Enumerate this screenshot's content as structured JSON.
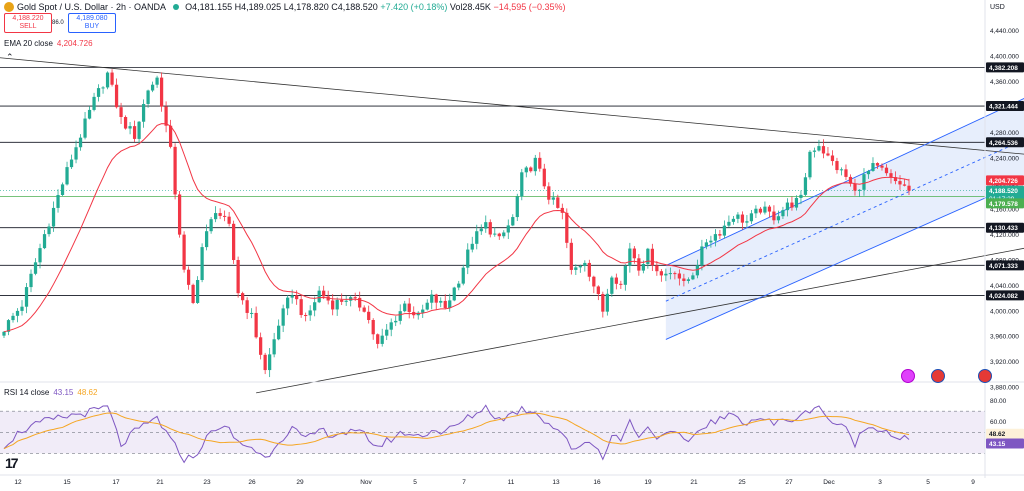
{
  "header": {
    "symbol": "Gold Spot / U.S. Dollar · 2h · OANDA",
    "open": "O4,181.155",
    "high": "H4,189.025",
    "low": "L4,178.820",
    "close": "C4,188.520",
    "change": "+7.420 (+0.18%)",
    "volume": "Vol28.45K",
    "vol_change": "−14,595 (−0.35%)",
    "sell_price": "4,188.220",
    "sell_label": "SELL",
    "spread": "86.0",
    "buy_price": "4,189.080",
    "buy_label": "BUY"
  },
  "ema_label": "EMA 20 close",
  "ema_value": "4,204.726",
  "rsi_label": "RSI 14 close",
  "rsi_value": "43.15",
  "rsi_ma_value": "48.62",
  "currency": "USD",
  "logo_text": "17",
  "icons": {
    "symbol_icon": "gold-coin-icon",
    "market_status": "market-open-dot-icon",
    "collapse": "chevron-up-icon",
    "events": [
      "economic-event-icon",
      "us-flag-icon",
      "us-flag-icon"
    ]
  },
  "colors": {
    "up": "#22ab94",
    "down": "#f23645",
    "ema": "#f23645",
    "channel": "#2962ff",
    "channel_fill": "#e3ebfb",
    "rsi": "#7e57c2",
    "rsi_ma": "#f5a623",
    "rsi_band": "#ede7f6",
    "level_line": "#131722"
  },
  "chart_data": {
    "type": "candlestick",
    "title": "Gold Spot / U.S. Dollar · 2h · OANDA",
    "x_ticks": [
      "12",
      "15",
      "17",
      "21",
      "23",
      "26",
      "29",
      "Nov",
      "5",
      "7",
      "11",
      "13",
      "16",
      "19",
      "21",
      "25",
      "27",
      "Dec",
      "3",
      "5",
      "9"
    ],
    "price_ylim": [
      3863,
      4466
    ],
    "price_ticks": [
      "4,440.000",
      "4,400.000",
      "4,360.000",
      "4,320.000",
      "4,280.000",
      "4,240.000",
      "4,200.000",
      "4,160.000",
      "4,120.000",
      "4,080.000",
      "4,040.000",
      "4,000.000",
      "3,960.000",
      "3,920.000",
      "3,880.000"
    ],
    "horizontal_levels": [
      "4,382.208",
      "4,321.444",
      "4,264.536",
      "4,130.433",
      "4,071.333",
      "4,024.082"
    ],
    "price_labels": {
      "ema": "4,204.726",
      "last": "4,188.520",
      "countdown": "01:17:29",
      "green_line": "4,179.578"
    },
    "anchors": [
      {
        "t": 0,
        "p": 3972
      },
      {
        "t": 4,
        "p": 4010
      },
      {
        "t": 9,
        "p": 4120
      },
      {
        "t": 15,
        "p": 4240
      },
      {
        "t": 20,
        "p": 4330
      },
      {
        "t": 23,
        "p": 4372
      },
      {
        "t": 26,
        "p": 4300
      },
      {
        "t": 29,
        "p": 4275
      },
      {
        "t": 32,
        "p": 4348
      },
      {
        "t": 34,
        "p": 4365
      },
      {
        "t": 37,
        "p": 4250
      },
      {
        "t": 40,
        "p": 4060
      },
      {
        "t": 42,
        "p": 4010
      },
      {
        "t": 44,
        "p": 4100
      },
      {
        "t": 47,
        "p": 4160
      },
      {
        "t": 50,
        "p": 4130
      },
      {
        "t": 52,
        "p": 4030
      },
      {
        "t": 55,
        "p": 3990
      },
      {
        "t": 58,
        "p": 3905
      },
      {
        "t": 61,
        "p": 3980
      },
      {
        "t": 64,
        "p": 4030
      },
      {
        "t": 67,
        "p": 3985
      },
      {
        "t": 70,
        "p": 4030
      },
      {
        "t": 73,
        "p": 4010
      },
      {
        "t": 76,
        "p": 4020
      },
      {
        "t": 80,
        "p": 4005
      },
      {
        "t": 83,
        "p": 3945
      },
      {
        "t": 86,
        "p": 3980
      },
      {
        "t": 89,
        "p": 4010
      },
      {
        "t": 92,
        "p": 3990
      },
      {
        "t": 95,
        "p": 4020
      },
      {
        "t": 98,
        "p": 4005
      },
      {
        "t": 101,
        "p": 4050
      },
      {
        "t": 104,
        "p": 4110
      },
      {
        "t": 107,
        "p": 4135
      },
      {
        "t": 110,
        "p": 4110
      },
      {
        "t": 113,
        "p": 4145
      },
      {
        "t": 115,
        "p": 4210
      },
      {
        "t": 118,
        "p": 4235
      },
      {
        "t": 121,
        "p": 4180
      },
      {
        "t": 124,
        "p": 4150
      },
      {
        "t": 126,
        "p": 4060
      },
      {
        "t": 129,
        "p": 4080
      },
      {
        "t": 131,
        "p": 4040
      },
      {
        "t": 133,
        "p": 4000
      },
      {
        "t": 135,
        "p": 4060
      },
      {
        "t": 137,
        "p": 4040
      },
      {
        "t": 139,
        "p": 4100
      },
      {
        "t": 141,
        "p": 4070
      },
      {
        "t": 143,
        "p": 4090
      },
      {
        "t": 146,
        "p": 4055
      },
      {
        "t": 149,
        "p": 4065
      },
      {
        "t": 151,
        "p": 4040
      },
      {
        "t": 153,
        "p": 4060
      },
      {
        "t": 156,
        "p": 4110
      },
      {
        "t": 159,
        "p": 4125
      },
      {
        "t": 162,
        "p": 4150
      },
      {
        "t": 165,
        "p": 4140
      },
      {
        "t": 168,
        "p": 4160
      },
      {
        "t": 171,
        "p": 4148
      },
      {
        "t": 174,
        "p": 4165
      },
      {
        "t": 177,
        "p": 4175
      },
      {
        "t": 179,
        "p": 4250
      },
      {
        "t": 181,
        "p": 4262
      },
      {
        "t": 183,
        "p": 4240
      },
      {
        "t": 185,
        "p": 4225
      },
      {
        "t": 187,
        "p": 4210
      },
      {
        "t": 189,
        "p": 4185
      },
      {
        "t": 191,
        "p": 4210
      },
      {
        "t": 193,
        "p": 4225
      },
      {
        "t": 195,
        "p": 4220
      },
      {
        "t": 197,
        "p": 4205
      },
      {
        "t": 199,
        "p": 4200
      },
      {
        "t": 201,
        "p": 4188.5
      }
    ],
    "rsi_ylim": [
      18,
      92
    ],
    "rsi_ticks": [
      "80.00",
      "60.00",
      "40.00"
    ],
    "rsi_band": [
      30,
      70
    ],
    "rsi_mid": 50,
    "rsi_anchors": [
      {
        "t": 0,
        "r": 38
      },
      {
        "t": 4,
        "r": 52
      },
      {
        "t": 9,
        "r": 60
      },
      {
        "t": 15,
        "r": 66
      },
      {
        "t": 20,
        "r": 70
      },
      {
        "t": 23,
        "r": 74
      },
      {
        "t": 26,
        "r": 38
      },
      {
        "t": 29,
        "r": 50
      },
      {
        "t": 32,
        "r": 58
      },
      {
        "t": 34,
        "r": 64
      },
      {
        "t": 37,
        "r": 42
      },
      {
        "t": 40,
        "r": 25
      },
      {
        "t": 42,
        "r": 26
      },
      {
        "t": 44,
        "r": 38
      },
      {
        "t": 47,
        "r": 55
      },
      {
        "t": 50,
        "r": 52
      },
      {
        "t": 52,
        "r": 40
      },
      {
        "t": 55,
        "r": 36
      },
      {
        "t": 58,
        "r": 25
      },
      {
        "t": 61,
        "r": 42
      },
      {
        "t": 64,
        "r": 54
      },
      {
        "t": 67,
        "r": 42
      },
      {
        "t": 70,
        "r": 52
      },
      {
        "t": 73,
        "r": 48
      },
      {
        "t": 76,
        "r": 50
      },
      {
        "t": 80,
        "r": 48
      },
      {
        "t": 83,
        "r": 36
      },
      {
        "t": 86,
        "r": 44
      },
      {
        "t": 89,
        "r": 50
      },
      {
        "t": 92,
        "r": 46
      },
      {
        "t": 95,
        "r": 52
      },
      {
        "t": 98,
        "r": 50
      },
      {
        "t": 101,
        "r": 58
      },
      {
        "t": 104,
        "r": 66
      },
      {
        "t": 107,
        "r": 74
      },
      {
        "t": 110,
        "r": 62
      },
      {
        "t": 113,
        "r": 68
      },
      {
        "t": 115,
        "r": 72
      },
      {
        "t": 118,
        "r": 70
      },
      {
        "t": 121,
        "r": 58
      },
      {
        "t": 124,
        "r": 50
      },
      {
        "t": 126,
        "r": 32
      },
      {
        "t": 129,
        "r": 42
      },
      {
        "t": 131,
        "r": 38
      },
      {
        "t": 133,
        "r": 28
      },
      {
        "t": 135,
        "r": 46
      },
      {
        "t": 137,
        "r": 44
      },
      {
        "t": 139,
        "r": 60
      },
      {
        "t": 141,
        "r": 48
      },
      {
        "t": 143,
        "r": 54
      },
      {
        "t": 146,
        "r": 44
      },
      {
        "t": 149,
        "r": 50
      },
      {
        "t": 151,
        "r": 40
      },
      {
        "t": 153,
        "r": 46
      },
      {
        "t": 156,
        "r": 58
      },
      {
        "t": 159,
        "r": 62
      },
      {
        "t": 162,
        "r": 66
      },
      {
        "t": 165,
        "r": 60
      },
      {
        "t": 168,
        "r": 64
      },
      {
        "t": 171,
        "r": 58
      },
      {
        "t": 174,
        "r": 62
      },
      {
        "t": 177,
        "r": 64
      },
      {
        "t": 179,
        "r": 72
      },
      {
        "t": 181,
        "r": 76
      },
      {
        "t": 183,
        "r": 62
      },
      {
        "t": 185,
        "r": 58
      },
      {
        "t": 187,
        "r": 52
      },
      {
        "t": 189,
        "r": 40
      },
      {
        "t": 191,
        "r": 52
      },
      {
        "t": 193,
        "r": 56
      },
      {
        "t": 195,
        "r": 54
      },
      {
        "t": 197,
        "r": 48
      },
      {
        "t": 199,
        "r": 45
      },
      {
        "t": 201,
        "r": 43.15
      }
    ],
    "trendlines": [
      {
        "name": "descending-trendline",
        "from": {
          "t": -2,
          "p": 4398
        },
        "to": {
          "t": 240,
          "p": 4237
        }
      },
      {
        "name": "ascending-trendline",
        "from": {
          "t": 56,
          "p": 3871
        },
        "to": {
          "t": 240,
          "p": 4116
        }
      },
      {
        "name": "channel-upper",
        "from": {
          "t": 147,
          "p": 4071
        },
        "to": {
          "t": 238,
          "p": 4371
        }
      },
      {
        "name": "channel-mid",
        "from": {
          "t": 147,
          "p": 4015
        },
        "to": {
          "t": 238,
          "p": 4305
        }
      },
      {
        "name": "channel-lower",
        "from": {
          "t": 147,
          "p": 3955
        },
        "to": {
          "t": 238,
          "p": 4240
        }
      }
    ],
    "grid": false,
    "legend": "top-left"
  }
}
